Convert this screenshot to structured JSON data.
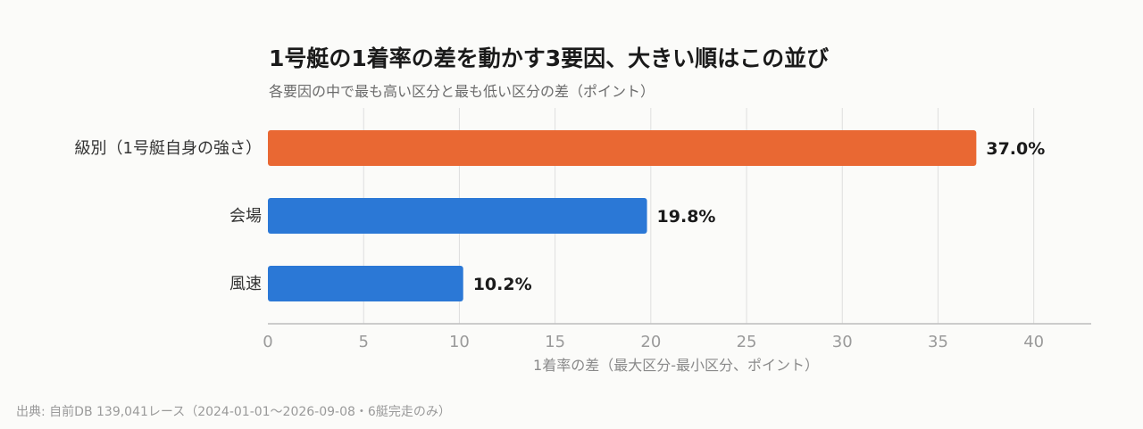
{
  "chart_data": {
    "type": "bar",
    "orientation": "horizontal",
    "title": "1号艇の1着率の差を動かす3要因、大きい順はこの並び",
    "subtitle": "各要因の中で最も高い区分と最も低い区分の差（ポイント）",
    "categories": [
      "級別（1号艇自身の強さ）",
      "会場",
      "風速"
    ],
    "values": [
      37.0,
      19.8,
      10.2
    ],
    "data_labels": [
      "37.0%",
      "19.8%",
      "10.2%"
    ],
    "bar_colors": [
      "#e96833",
      "#2b78d6",
      "#2b78d6"
    ],
    "xlabel": "1着率の差（最大区分-最小区分、ポイント）",
    "ylabel": "",
    "xlim": [
      0,
      43
    ],
    "xticks": [
      0,
      5,
      10,
      15,
      20,
      25,
      30,
      35,
      40
    ],
    "grid": true
  },
  "source": "出典: 自前DB 139,041レース（2024-01-01〜2026-09-08・6艇完走のみ）"
}
